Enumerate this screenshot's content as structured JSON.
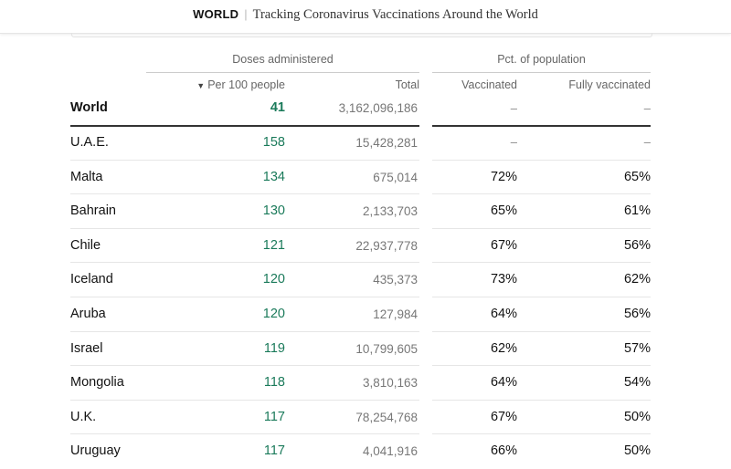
{
  "header": {
    "section": "WORLD",
    "separator": "|",
    "headline": "Tracking Coronavirus Vaccinations Around the World"
  },
  "table": {
    "group_headers": {
      "doses": "Doses administered",
      "population": "Pct. of population"
    },
    "columns": {
      "sort_indicator": "▼",
      "per_100": "Per 100 people",
      "total": "Total",
      "vaccinated": "Vaccinated",
      "fully_vaccinated": "Fully vaccinated"
    },
    "world": {
      "country": "World",
      "per_100": "41",
      "total": "3,162,096,186",
      "vaccinated": "–",
      "fully_vaccinated": "–"
    },
    "rows": [
      {
        "country": "U.A.E.",
        "per_100": "158",
        "total": "15,428,281",
        "vaccinated": "–",
        "fully_vaccinated": "–"
      },
      {
        "country": "Malta",
        "per_100": "134",
        "total": "675,014",
        "vaccinated": "72%",
        "fully_vaccinated": "65%"
      },
      {
        "country": "Bahrain",
        "per_100": "130",
        "total": "2,133,703",
        "vaccinated": "65%",
        "fully_vaccinated": "61%"
      },
      {
        "country": "Chile",
        "per_100": "121",
        "total": "22,937,778",
        "vaccinated": "67%",
        "fully_vaccinated": "56%"
      },
      {
        "country": "Iceland",
        "per_100": "120",
        "total": "435,373",
        "vaccinated": "73%",
        "fully_vaccinated": "62%"
      },
      {
        "country": "Aruba",
        "per_100": "120",
        "total": "127,984",
        "vaccinated": "64%",
        "fully_vaccinated": "56%"
      },
      {
        "country": "Israel",
        "per_100": "119",
        "total": "10,799,605",
        "vaccinated": "62%",
        "fully_vaccinated": "57%"
      },
      {
        "country": "Mongolia",
        "per_100": "118",
        "total": "3,810,163",
        "vaccinated": "64%",
        "fully_vaccinated": "54%"
      },
      {
        "country": "U.K.",
        "per_100": "117",
        "total": "78,254,768",
        "vaccinated": "67%",
        "fully_vaccinated": "50%"
      },
      {
        "country": "Uruguay",
        "per_100": "117",
        "total": "4,041,916",
        "vaccinated": "66%",
        "fully_vaccinated": "50%"
      }
    ]
  },
  "colors": {
    "accent_green": "#1a7a5a",
    "muted_text": "#777777",
    "rule": "#e6e6e6"
  }
}
